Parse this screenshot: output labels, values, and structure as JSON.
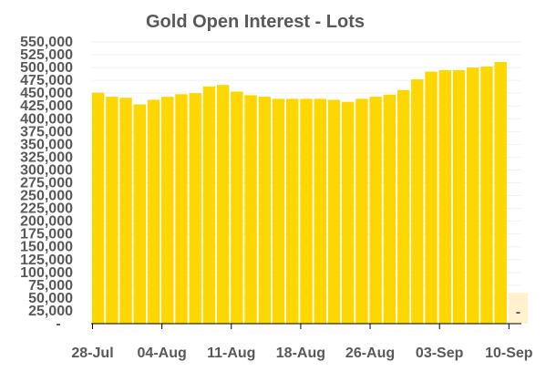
{
  "chart_data": {
    "type": "bar",
    "title": "Gold Open Interest - Lots",
    "xlabel": "",
    "ylabel": "",
    "ylim": [
      0,
      550000
    ],
    "ytick_step": 25000,
    "ytick_labels": [
      "-",
      "25,000",
      "50,000",
      "75,000",
      "100,000",
      "125,000",
      "150,000",
      "175,000",
      "200,000",
      "225,000",
      "250,000",
      "275,000",
      "300,000",
      "325,000",
      "350,000",
      "375,000",
      "400,000",
      "425,000",
      "450,000",
      "475,000",
      "500,000",
      "525,000",
      "550,000"
    ],
    "xtick_labels": [
      "28-Jul",
      "04-Aug",
      "11-Aug",
      "18-Aug",
      "26-Aug",
      "03-Sep",
      "10-Sep"
    ],
    "grid": true,
    "bar_color": "#ffd700",
    "highlight_color": "#fff2cc",
    "values": [
      451000,
      443000,
      441000,
      428000,
      437000,
      443000,
      448000,
      450000,
      463000,
      466000,
      453000,
      446000,
      443000,
      439000,
      439000,
      439000,
      439000,
      437000,
      433000,
      439000,
      443000,
      447000,
      456000,
      477000,
      492000,
      495000,
      495000,
      500000,
      502000,
      511000,
      0
    ],
    "last_value_label": "-"
  }
}
